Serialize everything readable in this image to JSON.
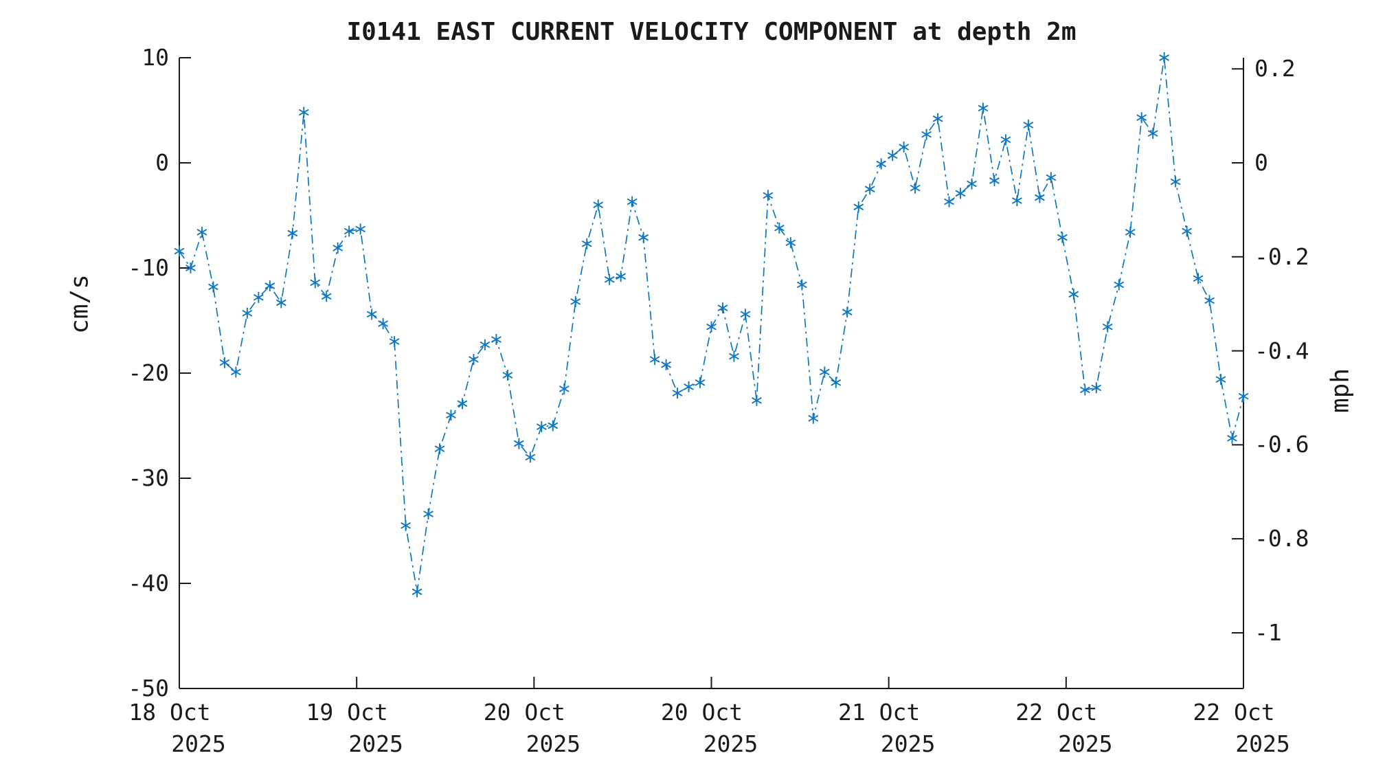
{
  "title": "I0141 EAST CURRENT VELOCITY COMPONENT at depth 2m",
  "chart_data": {
    "type": "line",
    "title": "I0141 EAST CURRENT VELOCITY COMPONENT at depth 2m",
    "series": [
      {
        "name": "east-current-velocity",
        "color": "#0f76c0",
        "line_style": "dash-dot",
        "marker": "asterisk",
        "values": [
          -8.4,
          -10.0,
          -6.6,
          -11.8,
          -19.0,
          -19.9,
          -14.3,
          -12.8,
          -11.7,
          -13.3,
          -6.7,
          4.8,
          -11.4,
          -12.7,
          -8.1,
          -6.5,
          -6.3,
          -14.4,
          -15.3,
          -17.0,
          -34.5,
          -40.8,
          -33.4,
          -27.2,
          -24.0,
          -22.9,
          -18.7,
          -17.3,
          -16.8,
          -20.2,
          -26.7,
          -28.0,
          -25.1,
          -25.0,
          -21.5,
          -13.2,
          -7.7,
          -4.0,
          -11.1,
          -10.8,
          -3.7,
          -7.1,
          -18.7,
          -19.2,
          -21.9,
          -21.3,
          -20.9,
          -15.6,
          -13.8,
          -18.4,
          -14.4,
          -22.6,
          -3.1,
          -6.2,
          -7.6,
          -11.6,
          -24.3,
          -19.9,
          -20.9,
          -14.2,
          -4.2,
          -2.5,
          -0.1,
          0.7,
          1.5,
          -2.4,
          2.7,
          4.2,
          -3.7,
          -2.9,
          -2.0,
          5.2,
          -1.7,
          2.2,
          -3.6,
          3.6,
          -3.3,
          -1.4,
          -7.1,
          -12.5,
          -21.6,
          -21.4,
          -15.6,
          -11.6,
          -6.6,
          4.3,
          2.8,
          10.0,
          -1.8,
          -6.5,
          -11.0,
          -13.1,
          -20.6,
          -26.2,
          -22.2
        ]
      }
    ],
    "left_axis": {
      "label": "cm/s",
      "tick_labels": [
        "10",
        "0",
        "-10",
        "-20",
        "-30",
        "-40",
        "-50"
      ],
      "tick_values": [
        10,
        0,
        -10,
        -20,
        -30,
        -40,
        -50
      ],
      "range": [
        -50,
        10
      ]
    },
    "right_axis": {
      "label": "mph",
      "tick_labels": [
        "0.2",
        "0",
        "-0.2",
        "-0.4",
        "-0.6",
        "-0.8",
        "-1"
      ],
      "tick_values": [
        0.2,
        0,
        -0.2,
        -0.4,
        -0.6,
        -0.8,
        -1
      ],
      "cm_per_s_to_mph": 0.0223694
    },
    "x_axis": {
      "tick_labels": [
        [
          "18 Oct",
          "2025"
        ],
        [
          "19 Oct",
          "2025"
        ],
        [
          "20 Oct",
          "2025"
        ],
        [
          "20 Oct",
          "2025"
        ],
        [
          "21 Oct",
          "2025"
        ],
        [
          "22 Oct",
          "2025"
        ],
        [
          "22 Oct",
          "2025"
        ]
      ],
      "grid": false,
      "legend": "none"
    }
  }
}
